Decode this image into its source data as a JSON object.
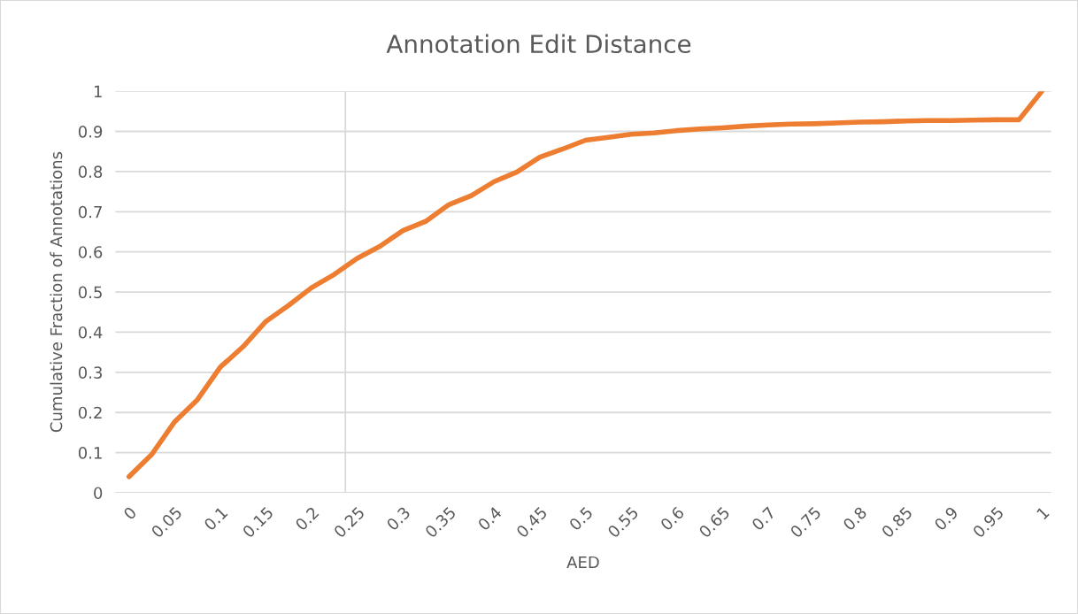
{
  "chart_data": {
    "type": "line",
    "title": "Annotation Edit Distance",
    "xlabel": "AED",
    "ylabel": "Cumulative Fraction of Annotations",
    "x": [
      0,
      0.025,
      0.05,
      0.075,
      0.1,
      0.125,
      0.15,
      0.175,
      0.2,
      0.225,
      0.25,
      0.275,
      0.3,
      0.325,
      0.35,
      0.375,
      0.4,
      0.425,
      0.45,
      0.475,
      0.5,
      0.525,
      0.55,
      0.575,
      0.6,
      0.625,
      0.65,
      0.675,
      0.7,
      0.725,
      0.75,
      0.775,
      0.8,
      0.825,
      0.85,
      0.875,
      0.9,
      0.925,
      0.95,
      0.975,
      1
    ],
    "series": [
      {
        "color": "#ed7d31",
        "values": [
          0.04,
          0.096,
          0.177,
          0.232,
          0.313,
          0.364,
          0.427,
          0.467,
          0.511,
          0.544,
          0.584,
          0.614,
          0.653,
          0.676,
          0.717,
          0.74,
          0.775,
          0.799,
          0.836,
          0.856,
          0.878,
          0.885,
          0.893,
          0.896,
          0.902,
          0.906,
          0.909,
          0.913,
          0.916,
          0.918,
          0.919,
          0.921,
          0.923,
          0.924,
          0.926,
          0.927,
          0.927,
          0.928,
          0.929,
          0.929,
          1.0
        ]
      }
    ],
    "xlim": [
      -0.015,
      1.01
    ],
    "xticks": [
      0,
      0.05,
      0.1,
      0.15,
      0.2,
      0.25,
      0.3,
      0.35,
      0.4,
      0.45,
      0.5,
      0.55,
      0.6,
      0.65,
      0.7,
      0.75,
      0.8,
      0.85,
      0.9,
      0.95,
      1
    ],
    "ylim": [
      0,
      1
    ],
    "yticks": [
      0,
      0.1,
      0.2,
      0.3,
      0.4,
      0.5,
      0.6,
      0.7,
      0.8,
      0.9,
      1
    ],
    "ref_lines": [
      {
        "axis": "x",
        "value": 0.237,
        "color": "#d9d9d9"
      }
    ],
    "grid": "y",
    "marker": "none",
    "line_style": "solid",
    "legend": false
  }
}
